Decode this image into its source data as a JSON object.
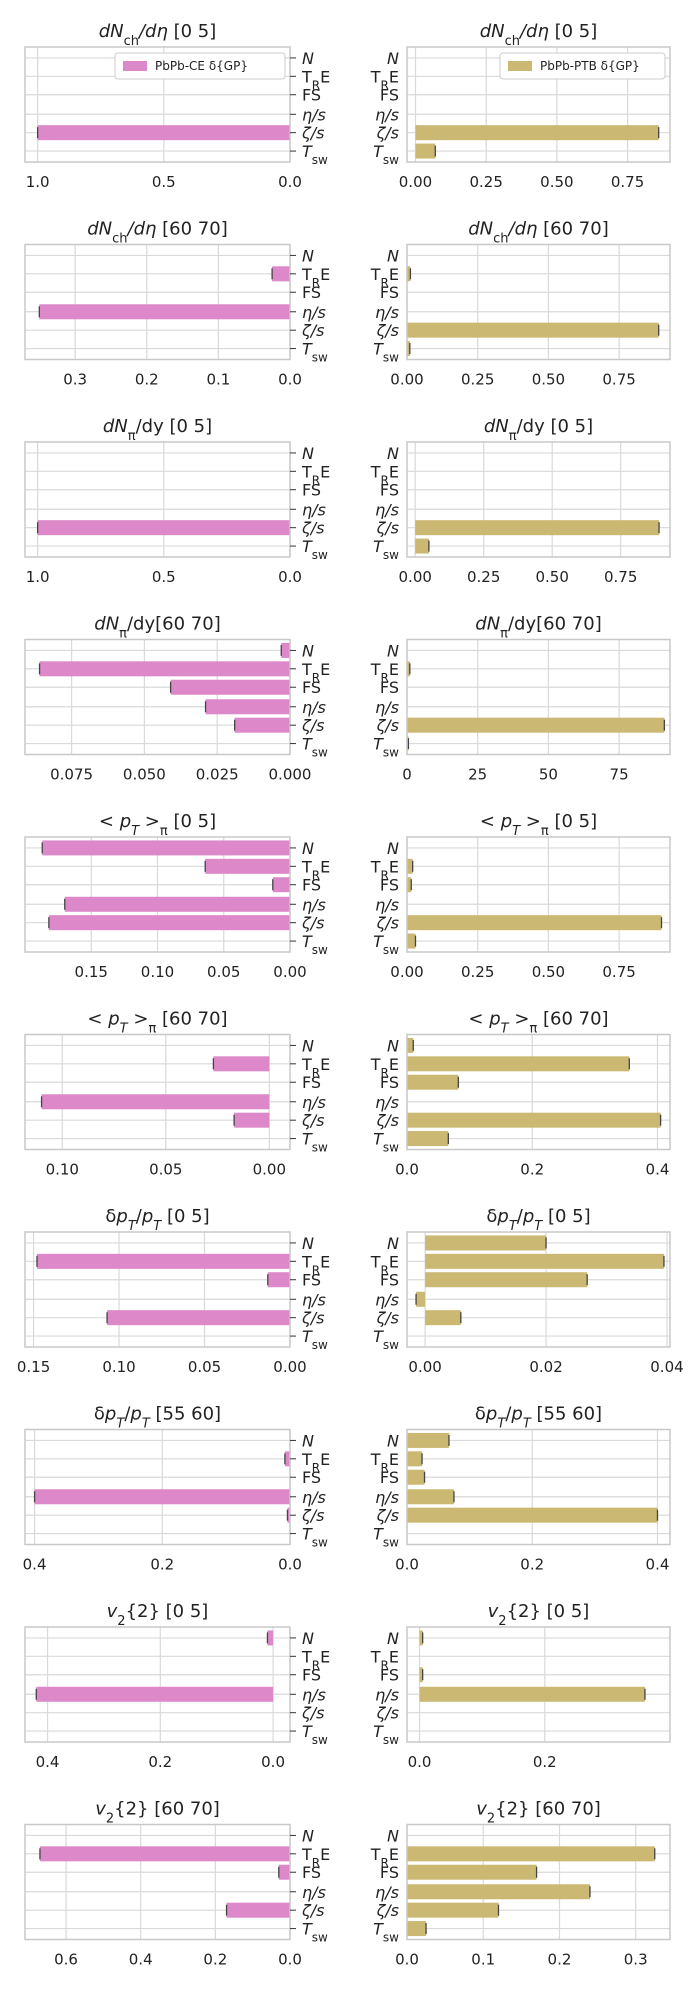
{
  "figure": {
    "row_labels": [
      "N",
      "TRE",
      "FS",
      "η/s",
      "ζ/s",
      "Tsw"
    ],
    "legend_left": "PbPb-CE  δ{GP}",
    "legend_right": "PbPb-PTB δ{GP}",
    "colors": {
      "left": "#dd88c8",
      "right": "#cbb872",
      "grid": "#d9d9d9",
      "axis": "#c8c8c8"
    }
  },
  "chart_data": [
    {
      "type": "bar",
      "orientation": "horizontal",
      "title": "dN_ch/dη [0 5]",
      "xlim": [
        1.05,
        0
      ],
      "ticks": [
        1.0,
        0.5,
        0.0
      ],
      "tick_labels": [
        "1.0",
        "0.5",
        "0.0"
      ],
      "values": [
        0,
        0,
        0,
        0,
        1.0,
        0
      ],
      "legend": "PbPb-CE  δ{GP}"
    },
    {
      "type": "bar",
      "orientation": "horizontal",
      "title": "dN_ch/dη [0 5]",
      "xlim": [
        -0.03,
        0.9
      ],
      "ticks": [
        0,
        0.25,
        0.5,
        0.75
      ],
      "tick_labels": [
        "0.00",
        "0.25",
        "0.50",
        "0.75"
      ],
      "values": [
        0,
        0,
        0,
        0,
        0.86,
        0.07
      ],
      "legend": "PbPb-PTB δ{GP}"
    },
    {
      "type": "bar",
      "orientation": "horizontal",
      "title": "dN_ch/dη [60 70]",
      "xlim": [
        0.37,
        0
      ],
      "ticks": [
        0.3,
        0.2,
        0.1,
        0.0
      ],
      "tick_labels": [
        "0.3",
        "0.2",
        "0.1",
        "0.0"
      ],
      "values": [
        0,
        0.025,
        0,
        0.35,
        0,
        0
      ]
    },
    {
      "type": "bar",
      "orientation": "horizontal",
      "title": "dN_ch/dη [60 70]",
      "xlim": [
        0,
        0.93
      ],
      "ticks": [
        0,
        0.25,
        0.5,
        0.75
      ],
      "tick_labels": [
        "0.00",
        "0.25",
        "0.50",
        "0.75"
      ],
      "values": [
        0,
        0.012,
        0,
        0,
        0.89,
        0.01
      ]
    },
    {
      "type": "bar",
      "orientation": "horizontal",
      "title": "dN_π/dy [0 5]",
      "xlim": [
        1.05,
        0
      ],
      "ticks": [
        1.0,
        0.5,
        0.0
      ],
      "tick_labels": [
        "1.0",
        "0.5",
        "0.0"
      ],
      "values": [
        0,
        0,
        0,
        0,
        1.0,
        0
      ]
    },
    {
      "type": "bar",
      "orientation": "horizontal",
      "title": "dN_π/dy [0 5]",
      "xlim": [
        -0.03,
        0.93
      ],
      "ticks": [
        0,
        0.25,
        0.5,
        0.75
      ],
      "tick_labels": [
        "0.00",
        "0.25",
        "0.50",
        "0.75"
      ],
      "values": [
        0,
        0,
        0,
        0,
        0.89,
        0.05
      ]
    },
    {
      "type": "bar",
      "orientation": "horizontal",
      "title": "dN_π/dy[60 70]",
      "xlim": [
        0.091,
        0
      ],
      "ticks": [
        0.075,
        0.05,
        0.025,
        0.0
      ],
      "tick_labels": [
        "0.075",
        "0.050",
        "0.025",
        "0.000"
      ],
      "values": [
        0.003,
        0.086,
        0.041,
        0.029,
        0.019,
        0
      ]
    },
    {
      "type": "bar",
      "orientation": "horizontal",
      "title": "dN_π/dy[60 70]",
      "xlim": [
        0,
        0.93
      ],
      "ticks": [
        0,
        0.25,
        0.5,
        0.75
      ],
      "tick_labels": [
        "0",
        "25",
        "50",
        "75"
      ],
      "values": [
        0,
        0.01,
        0,
        0,
        0.91,
        0.005
      ]
    },
    {
      "type": "bar",
      "orientation": "horizontal",
      "title": "< p_T >_π [0 5]",
      "xlim": [
        0.2,
        0
      ],
      "ticks": [
        0.15,
        0.1,
        0.05,
        0.0
      ],
      "tick_labels": [
        "0.15",
        "0.10",
        "0.05",
        "0.00"
      ],
      "values": [
        0.187,
        0.064,
        0.013,
        0.17,
        0.182,
        0
      ]
    },
    {
      "type": "bar",
      "orientation": "horizontal",
      "title": "< p_T >_π [0 5]",
      "xlim": [
        0,
        0.93
      ],
      "ticks": [
        0,
        0.25,
        0.5,
        0.75
      ],
      "tick_labels": [
        "0.00",
        "0.25",
        "0.50",
        "0.75"
      ],
      "values": [
        0,
        0.02,
        0.015,
        0,
        0.9,
        0.03
      ]
    },
    {
      "type": "bar",
      "orientation": "horizontal",
      "title": "< p_T >_π [60 70]",
      "xlim": [
        0.118,
        -0.01
      ],
      "ticks": [
        0.1,
        0.05,
        0.0
      ],
      "tick_labels": [
        "0.10",
        "0.05",
        "0.00"
      ],
      "values": [
        0,
        0.027,
        0,
        0.11,
        0.017,
        0
      ]
    },
    {
      "type": "bar",
      "orientation": "horizontal",
      "title": "< p_T >_π [60 70]",
      "xlim": [
        0,
        0.42
      ],
      "ticks": [
        0,
        0.2,
        0.4
      ],
      "tick_labels": [
        "0.0",
        "0.2",
        "0.4"
      ],
      "values": [
        0.01,
        0.355,
        0.082,
        0,
        0.405,
        0.066
      ]
    },
    {
      "type": "bar",
      "orientation": "horizontal",
      "title": "δp_T/p_T [0 5]",
      "xlim": [
        0.155,
        0
      ],
      "ticks": [
        0.15,
        0.1,
        0.05,
        0.0
      ],
      "tick_labels": [
        "0.15",
        "0.10",
        "0.05",
        "0.00"
      ],
      "values": [
        0,
        0.148,
        0.013,
        0,
        0.107,
        0
      ]
    },
    {
      "type": "bar",
      "orientation": "horizontal",
      "title": "δp_T/p_T [0 5]",
      "xlim": [
        -0.003,
        0.0405
      ],
      "ticks": [
        0,
        0.02,
        0.04
      ],
      "tick_labels": [
        "0.00",
        "0.02",
        "0.04"
      ],
      "values": [
        0.02,
        0.0395,
        0.0268,
        -0.0015,
        0.0059,
        0
      ]
    },
    {
      "type": "bar",
      "orientation": "horizontal",
      "title": "δp_T/p_T [55 60]",
      "xlim": [
        0.415,
        0
      ],
      "ticks": [
        0.4,
        0.2,
        0.0
      ],
      "tick_labels": [
        "0.4",
        "0.2",
        "0.0"
      ],
      "values": [
        0,
        0.008,
        0,
        0.4,
        0.004,
        0
      ]
    },
    {
      "type": "bar",
      "orientation": "horizontal",
      "title": "δp_T/p_T [55 60]",
      "xlim": [
        0,
        0.42
      ],
      "ticks": [
        0,
        0.2,
        0.4
      ],
      "tick_labels": [
        "0.0",
        "0.2",
        "0.4"
      ],
      "values": [
        0.067,
        0.024,
        0.028,
        0.075,
        0.4,
        0
      ]
    },
    {
      "type": "bar",
      "orientation": "horizontal",
      "title": "v_2{2} [0 5]",
      "xlim": [
        0.44,
        -0.03
      ],
      "ticks": [
        0.4,
        0.2,
        0.0
      ],
      "tick_labels": [
        "0.4",
        "0.2",
        "0.0"
      ],
      "values": [
        0.01,
        0,
        0,
        0.42,
        0,
        0
      ]
    },
    {
      "type": "bar",
      "orientation": "horizontal",
      "title": "v_2{2} [0 5]",
      "xlim": [
        -0.02,
        0.4
      ],
      "ticks": [
        0,
        0.2
      ],
      "tick_labels": [
        "0.0",
        "0.2"
      ],
      "values": [
        0.005,
        0,
        0.005,
        0.36,
        0,
        0
      ]
    },
    {
      "type": "bar",
      "orientation": "horizontal",
      "title": "v_2{2} [60 70]",
      "xlim": [
        0.71,
        0
      ],
      "ticks": [
        0.6,
        0.4,
        0.2,
        0.0
      ],
      "tick_labels": [
        "0.6",
        "0.4",
        "0.2",
        "0.0"
      ],
      "values": [
        0,
        0.67,
        0.03,
        0,
        0.17,
        0
      ]
    },
    {
      "type": "bar",
      "orientation": "horizontal",
      "title": "v_2{2} [60 70]",
      "xlim": [
        0,
        0.345
      ],
      "ticks": [
        0,
        0.1,
        0.2,
        0.3
      ],
      "tick_labels": [
        "0.0",
        "0.1",
        "0.2",
        "0.3"
      ],
      "values": [
        0,
        0.325,
        0.17,
        0.24,
        0.12,
        0.025
      ]
    }
  ]
}
